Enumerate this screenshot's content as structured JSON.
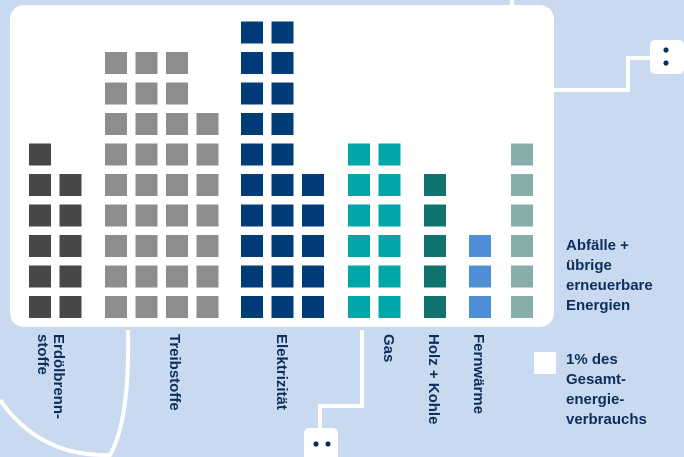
{
  "chart_data": {
    "type": "waffle-bar",
    "unit_label": "1% des\nGesamt-\nenergie-\nverbrauchs",
    "categories": [
      {
        "label": "Erdölbrenn-\nstoffe",
        "value": 11,
        "color": "#474747"
      },
      {
        "label": "Treibstoffe",
        "value": 34,
        "color": "#8d8d8d"
      },
      {
        "label": "Elektrizität",
        "value": 25,
        "color": "#003d78"
      },
      {
        "label": "Gas",
        "value": 12,
        "color": "#00a6a8"
      },
      {
        "label": "Holz + Kohle",
        "value": 5,
        "color": "#117370"
      },
      {
        "label": "Fernwärme",
        "value": 3,
        "color": "#4f8fd8"
      },
      {
        "label": "Abfälle +\nübrige\nerneuerbare\nEnergien",
        "value": 6,
        "color": "#87aeab"
      }
    ]
  },
  "colors": {
    "background": "#c9daf0",
    "panel": "#ffffff",
    "text": "#0c2e5c",
    "connector": "#ffffff"
  }
}
